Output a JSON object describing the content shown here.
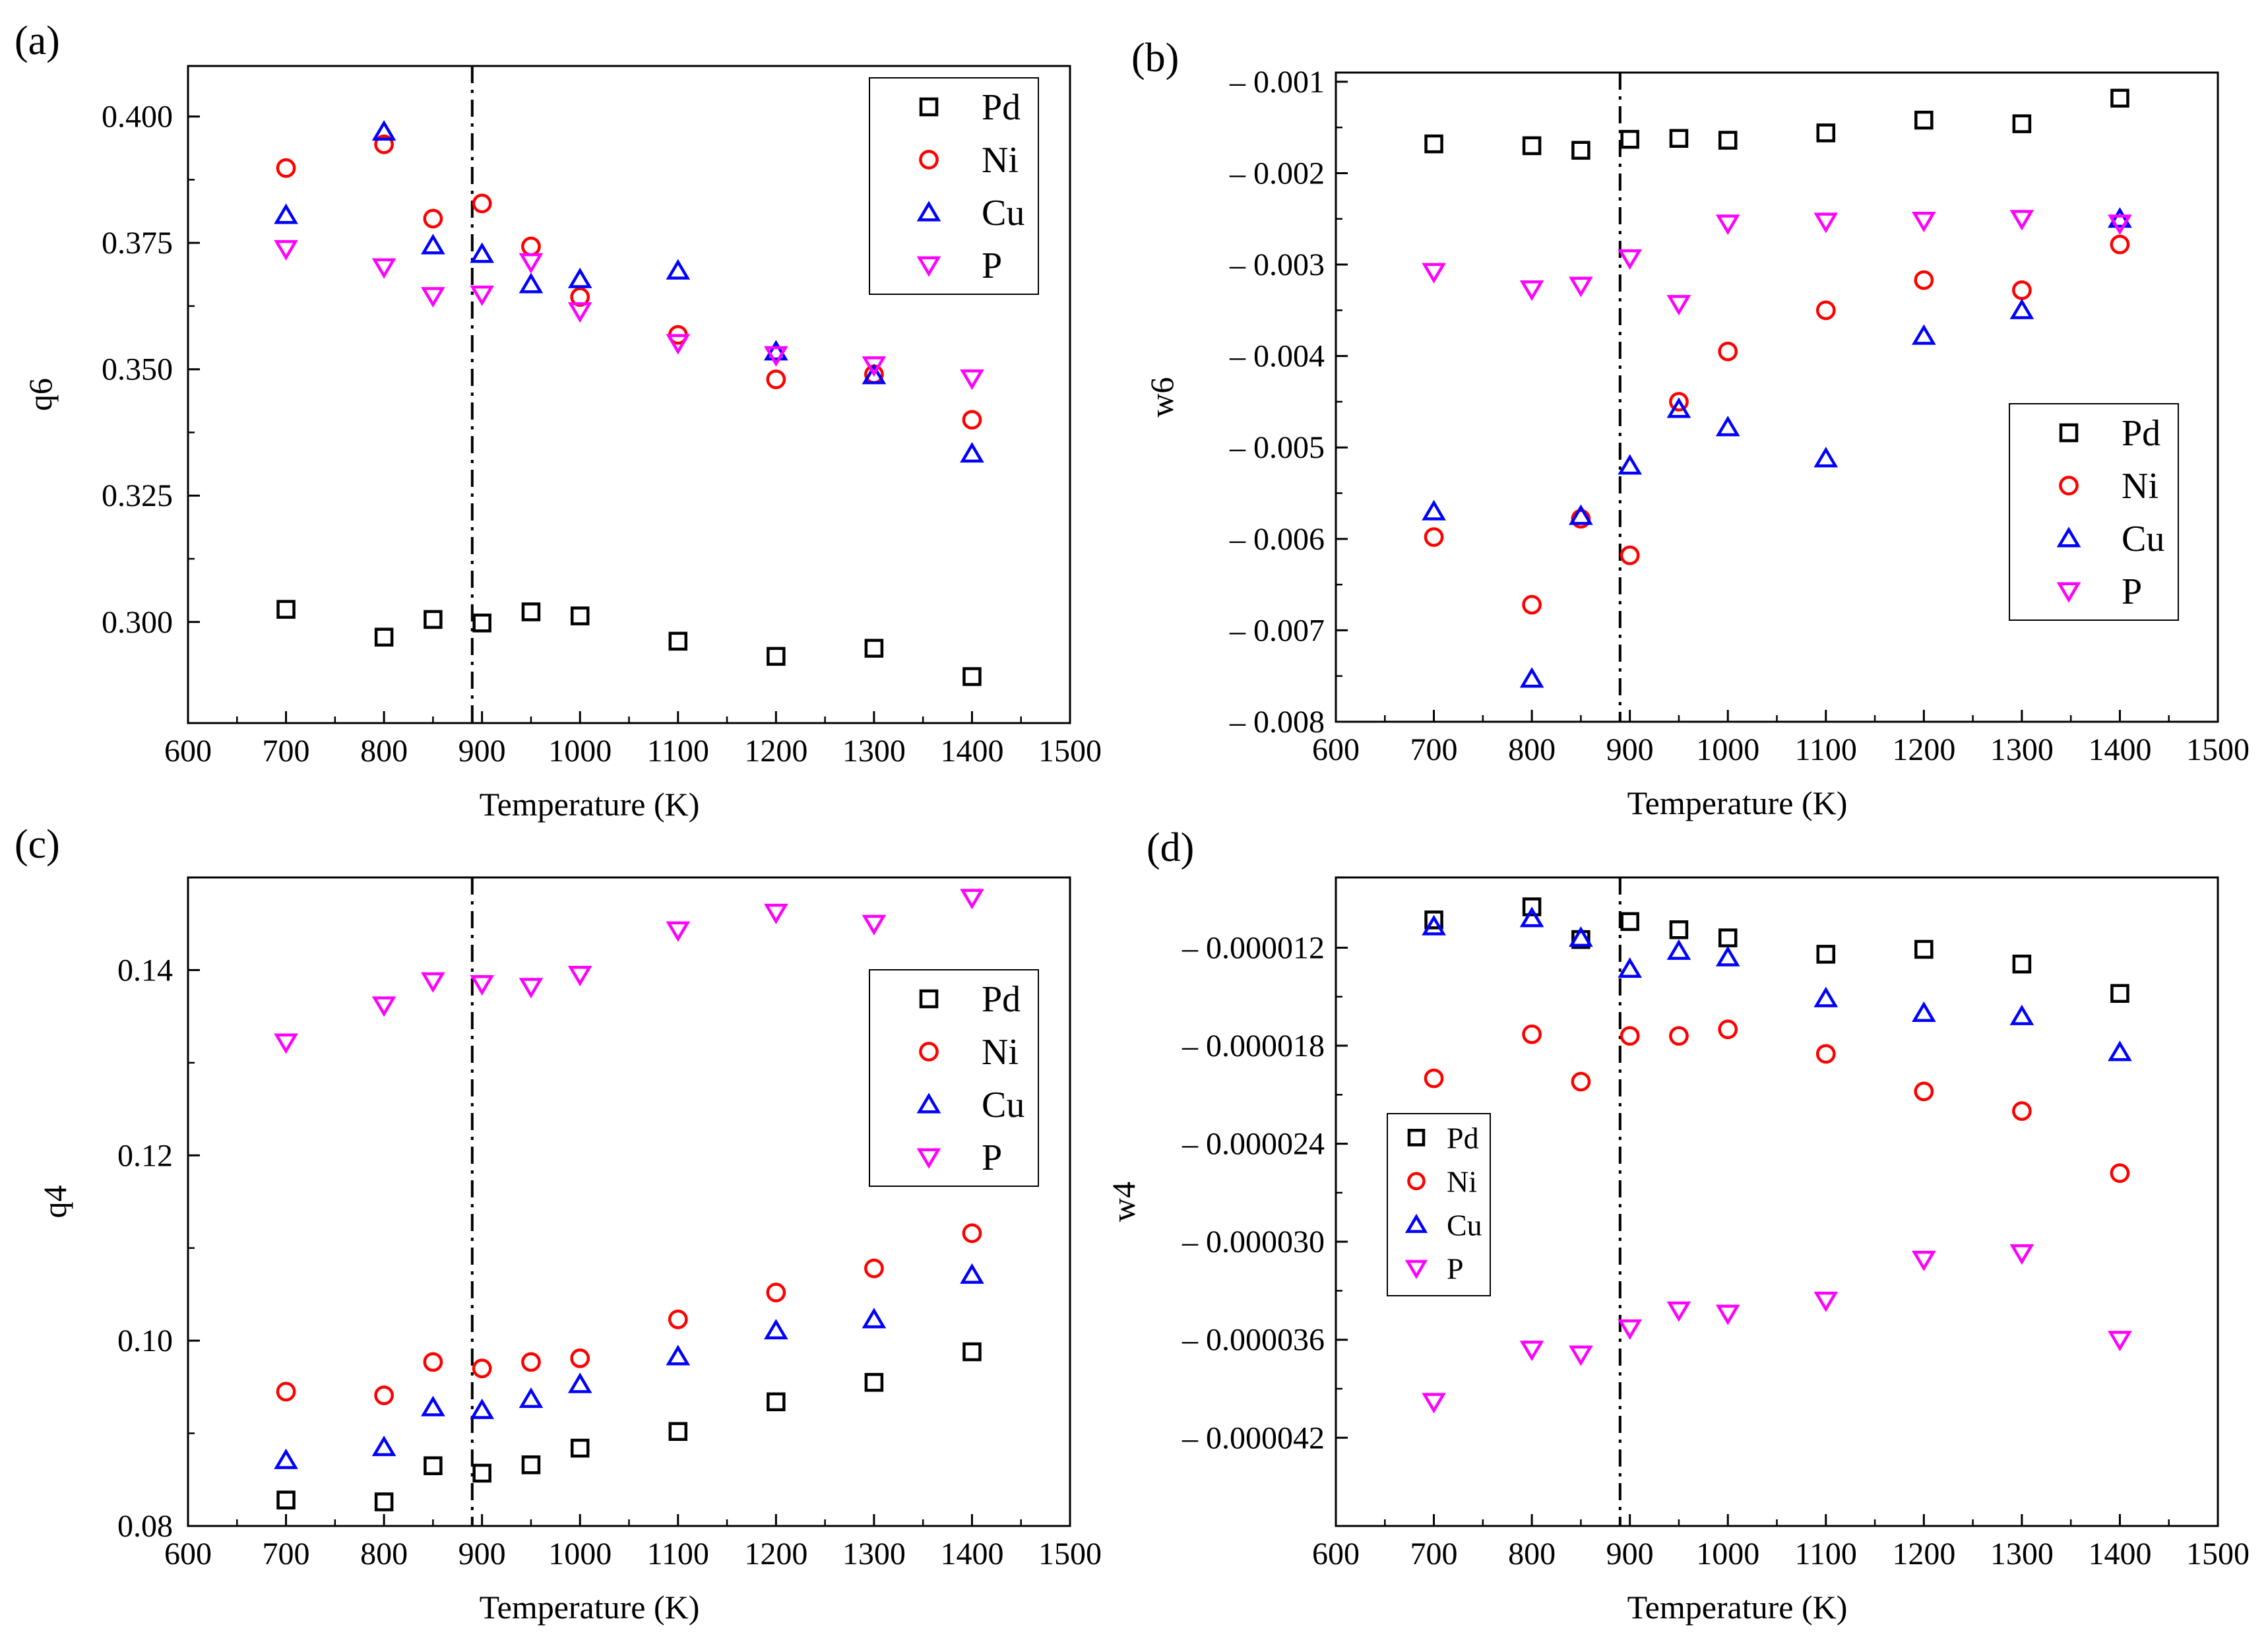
{
  "colors": {
    "Pd": "#000000",
    "Ni": "#ff0000",
    "Cu": "#0000ff",
    "P": "#ff00ff"
  },
  "chart_data": [
    {
      "type": "scatter",
      "panel_label": "(a)",
      "xlabel": "Temperature (K)",
      "ylabel": "q6",
      "xlim": [
        600,
        1500
      ],
      "ylim": [
        0.28,
        0.41
      ],
      "xticks": [
        600,
        700,
        800,
        900,
        1000,
        1100,
        1200,
        1300,
        1400,
        1500
      ],
      "xtick_labels": [
        "600",
        "700",
        "800",
        "900",
        "1000",
        "1100",
        "1200",
        "1300",
        "1400",
        "1500"
      ],
      "yticks": [
        0.3,
        0.325,
        0.35,
        0.375,
        0.4
      ],
      "ytick_labels": [
        "0.300",
        "0.325",
        "0.350",
        "0.375",
        "0.400"
      ],
      "vline_x": 890,
      "legend": {
        "position": "top-right",
        "size": "large"
      },
      "x": [
        700,
        800,
        850,
        900,
        950,
        1000,
        1100,
        1200,
        1300,
        1400
      ],
      "series": [
        {
          "name": "Pd",
          "marker": "square",
          "values": [
            0.3025,
            0.297,
            0.3005,
            0.2998,
            0.302,
            0.3012,
            0.2962,
            0.2932,
            0.2948,
            0.2892
          ]
        },
        {
          "name": "Ni",
          "marker": "circle",
          "values": [
            0.3898,
            0.3945,
            0.3798,
            0.3828,
            0.3743,
            0.3643,
            0.3568,
            0.348,
            0.349,
            0.34
          ]
        },
        {
          "name": "Cu",
          "marker": "triangle-up",
          "values": [
            0.3805,
            0.397,
            0.3745,
            0.3728,
            0.3668,
            0.3678,
            0.3695,
            0.3535,
            0.3488,
            0.3333
          ]
        },
        {
          "name": "P",
          "marker": "triangle-down",
          "values": [
            0.3738,
            0.3702,
            0.3645,
            0.3648,
            0.3712,
            0.3615,
            0.3552,
            0.3528,
            0.3508,
            0.3482
          ]
        }
      ]
    },
    {
      "type": "scatter",
      "panel_label": "(b)",
      "xlabel": "Temperature (K)",
      "ylabel": "w6",
      "xlim": [
        600,
        1500
      ],
      "ylim": [
        -0.008,
        -0.0009
      ],
      "xticks": [
        600,
        700,
        800,
        900,
        1000,
        1100,
        1200,
        1300,
        1400,
        1500
      ],
      "xtick_labels": [
        "600",
        "700",
        "800",
        "900",
        "1000",
        "1100",
        "1200",
        "1300",
        "1400",
        "1500"
      ],
      "yticks": [
        -0.008,
        -0.007,
        -0.006,
        -0.005,
        -0.004,
        -0.003,
        -0.002,
        -0.001
      ],
      "ytick_labels": [
        "– 0.008",
        "– 0.007",
        "– 0.006",
        "– 0.005",
        "– 0.004",
        "– 0.003",
        "– 0.002",
        "– 0.001"
      ],
      "vline_x": 890,
      "legend": {
        "position": "center-right",
        "size": "large"
      },
      "x": [
        700,
        800,
        850,
        900,
        950,
        1000,
        1100,
        1200,
        1300,
        1400
      ],
      "series": [
        {
          "name": "Pd",
          "marker": "square",
          "values": [
            -0.00168,
            -0.0017,
            -0.00175,
            -0.00163,
            -0.00162,
            -0.00164,
            -0.00156,
            -0.00142,
            -0.00146,
            -0.00118
          ]
        },
        {
          "name": "Ni",
          "marker": "circle",
          "values": [
            -0.00598,
            -0.00672,
            -0.00578,
            -0.00618,
            -0.0045,
            -0.00395,
            -0.0035,
            -0.00317,
            -0.00328,
            -0.00278
          ]
        },
        {
          "name": "Cu",
          "marker": "triangle-up",
          "values": [
            -0.0057,
            -0.00753,
            -0.00575,
            -0.0052,
            -0.00458,
            -0.00478,
            -0.00512,
            -0.00378,
            -0.0035,
            -0.0025
          ]
        },
        {
          "name": "P",
          "marker": "triangle-down",
          "values": [
            -0.00308,
            -0.00327,
            -0.00323,
            -0.00293,
            -0.00343,
            -0.00255,
            -0.00253,
            -0.00252,
            -0.0025,
            -0.00255
          ]
        }
      ]
    },
    {
      "type": "scatter",
      "panel_label": "(c)",
      "xlabel": "Temperature (K)",
      "ylabel": "q4",
      "xlim": [
        600,
        1500
      ],
      "ylim": [
        0.08,
        0.15
      ],
      "xticks": [
        600,
        700,
        800,
        900,
        1000,
        1100,
        1200,
        1300,
        1400,
        1500
      ],
      "xtick_labels": [
        "600",
        "700",
        "800",
        "900",
        "1000",
        "1100",
        "1200",
        "1300",
        "1400",
        "1500"
      ],
      "yticks": [
        0.08,
        0.1,
        0.12,
        0.14
      ],
      "ytick_labels": [
        "0.08",
        "0.10",
        "0.12",
        "0.14"
      ],
      "vline_x": 890,
      "legend": {
        "position": "center-right",
        "size": "large"
      },
      "x": [
        700,
        800,
        850,
        900,
        950,
        1000,
        1100,
        1200,
        1300,
        1400
      ],
      "series": [
        {
          "name": "Pd",
          "marker": "square",
          "values": [
            0.0828,
            0.0826,
            0.0865,
            0.0857,
            0.0866,
            0.0884,
            0.0902,
            0.0934,
            0.0955,
            0.0988
          ]
        },
        {
          "name": "Ni",
          "marker": "circle",
          "values": [
            0.0945,
            0.0941,
            0.0977,
            0.097,
            0.0977,
            0.0981,
            0.1023,
            0.1052,
            0.1078,
            0.1116
          ]
        },
        {
          "name": "Cu",
          "marker": "triangle-up",
          "values": [
            0.0871,
            0.0885,
            0.0928,
            0.0925,
            0.0937,
            0.0953,
            0.0983,
            0.1011,
            0.1023,
            0.1071
          ]
        },
        {
          "name": "P",
          "marker": "triangle-down",
          "values": [
            0.1322,
            0.1362,
            0.1388,
            0.1385,
            0.1382,
            0.1395,
            0.1443,
            0.1462,
            0.145,
            0.1478
          ]
        }
      ]
    },
    {
      "type": "scatter",
      "panel_label": "(d)",
      "xlabel": "Temperature (K)",
      "ylabel": "w4",
      "xlim": [
        600,
        1500
      ],
      "ylim": [
        -4.74e-05,
        -7.7e-06
      ],
      "xticks": [
        600,
        700,
        800,
        900,
        1000,
        1100,
        1200,
        1300,
        1400,
        1500
      ],
      "xtick_labels": [
        "600",
        "700",
        "800",
        "900",
        "1000",
        "1100",
        "1200",
        "1300",
        "1400",
        "1500"
      ],
      "yticks": [
        -1.2e-05,
        -1.8e-05,
        -2.4e-05,
        -3e-05,
        -3.6e-05,
        -4.2e-05
      ],
      "ytick_labels": [
        "– 0.000012",
        "– 0.000018",
        "– 0.000024",
        "– 0.000030",
        "– 0.000036",
        "– 0.000042"
      ],
      "vline_x": 890,
      "legend": {
        "position": "left",
        "size": "small"
      },
      "x": [
        700,
        800,
        850,
        900,
        950,
        1000,
        1100,
        1200,
        1300,
        1400
      ],
      "series": [
        {
          "name": "Pd",
          "marker": "square",
          "values": [
            -1.03e-05,
            -9.5e-06,
            -1.15e-05,
            -1.04e-05,
            -1.09e-05,
            -1.14e-05,
            -1.24e-05,
            -1.21e-05,
            -1.3e-05,
            -1.48e-05
          ]
        },
        {
          "name": "Ni",
          "marker": "circle",
          "values": [
            -2e-05,
            -1.73e-05,
            -2.02e-05,
            -1.74e-05,
            -1.74e-05,
            -1.7e-05,
            -1.85e-05,
            -2.08e-05,
            -2.2e-05,
            -2.58e-05
          ]
        },
        {
          "name": "Cu",
          "marker": "triangle-up",
          "values": [
            -1.07e-05,
            -1.02e-05,
            -1.14e-05,
            -1.33e-05,
            -1.22e-05,
            -1.26e-05,
            -1.51e-05,
            -1.6e-05,
            -1.62e-05,
            -1.84e-05
          ]
        },
        {
          "name": "P",
          "marker": "triangle-down",
          "values": [
            -3.98e-05,
            -3.66e-05,
            -3.69e-05,
            -3.53e-05,
            -3.42e-05,
            -3.44e-05,
            -3.36e-05,
            -3.11e-05,
            -3.07e-05,
            -3.6e-05
          ]
        }
      ]
    }
  ]
}
